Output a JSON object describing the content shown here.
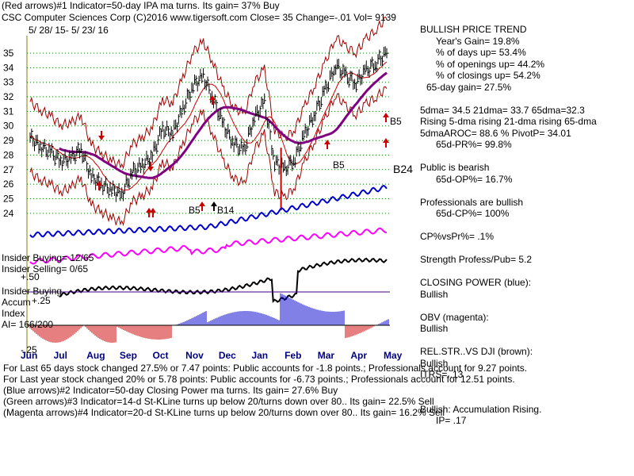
{
  "header": {
    "line1": "(Red arrows)#1 Indicator=50-day IPA ma turns. Its gain= 37% Buy",
    "line2": "CSC  Computer Sciences Corp  (C)2016 www.tigersoft.com   Close=  35  Change=-.01 Vol= 9139",
    "line3": "5/ 28/ 15- 5/ 23/ 16"
  },
  "right_panel": [
    {
      "text": "BULLISH PRICE TREND",
      "indent": 0
    },
    {
      "text": "Year's Gain= 19.8%",
      "indent": 20
    },
    {
      "text": "% of days up= 53.4%",
      "indent": 20
    },
    {
      "text": "% of openings up= 44.2%",
      "indent": 20
    },
    {
      "text": "% of closings up= 54.2%",
      "indent": 20
    },
    {
      "text": "65-day gain= 27.5%",
      "indent": 8
    },
    {
      "text": "",
      "indent": 0
    },
    {
      "text": "5dma= 34.5 21dma= 33.7 65dma=32.3",
      "indent": 0
    },
    {
      "text": "Rising 5-dma rising 21-dma rising 65-dma",
      "indent": 0
    },
    {
      "text": "5dmaAROC= 88.6 %  PivotP= 34.01",
      "indent": 0
    },
    {
      "text": "65d-PR%= 99.8%",
      "indent": 20
    },
    {
      "text": "",
      "indent": 0
    },
    {
      "text": "Public is bearish",
      "indent": 0
    },
    {
      "text": "65d-OP%= 16.7%",
      "indent": 20
    },
    {
      "text": "",
      "indent": 0
    },
    {
      "text": "Professionals are bullish",
      "indent": 0
    },
    {
      "text": "65d-CP%= 100%",
      "indent": 20
    },
    {
      "text": "",
      "indent": 0
    },
    {
      "text": "CP%vsPr%=  .1%",
      "indent": 0
    },
    {
      "text": "",
      "indent": 0
    },
    {
      "text": "Strength Profess/Pub= 5.2",
      "indent": 0
    },
    {
      "text": "",
      "indent": 0
    },
    {
      "text": "CLOSING POWER (blue):",
      "indent": 0
    },
    {
      "text": "Bullish",
      "indent": 0
    },
    {
      "text": "",
      "indent": 0
    },
    {
      "text": "OBV (magenta):",
      "indent": 0
    },
    {
      "text": "Bullish",
      "indent": 0
    },
    {
      "text": "",
      "indent": 0
    },
    {
      "text": "REL.STR..VS DJI (brown):",
      "indent": 0
    },
    {
      "text": "Bullish",
      "indent": 0
    },
    {
      "text": "ITRS= .13",
      "indent": 0
    },
    {
      "text": "",
      "indent": 0
    },
    {
      "text": "",
      "indent": 0
    },
    {
      "text": "Bullish: Accumulation Rising.",
      "indent": 0
    },
    {
      "text": "IP=  .17",
      "indent": 20
    }
  ],
  "left_labels": {
    "insider_buying": "Insider Buying= 12/65",
    "insider_selling": "Insider Selling= 0/65",
    "insider_buying2": "Insider Buying",
    "accum": "Accum",
    "index": "Index",
    "ai": "AI= 166/200",
    "plus50": "+.50",
    "plus25": "+.25",
    "minus25": "-.25"
  },
  "annotations": {
    "b24": "B24",
    "b5_right": "B5",
    "b5_mid": "B5",
    "b5_left": "B5",
    "b14": "B14"
  },
  "footer": {
    "f1": "For Last 65 days stock changed  27.5% or  7.47 points:  Public accounts for -1.8 points.;  Professionals account for  9.27 points.",
    "f2": "For Last year stock changed  20% or  5.78 points:  Public accounts for -6.73 points.;  Professionals account for  12.51 points.",
    "f3": "(Blue arrows)#2 Indicator=50-day Closing Power ma turns. Its gain= 27.6% Buy",
    "f4": "(Green arrows)#3 Indicator=14-d St-KLine turns up below 20/turns down over 80.. Its gain= 22.5% Sell",
    "f5": "(Magenta arrows)#4 Indicator=20-d St-KLine turns up below 20/turns down over 80.. Its gain= 16.2% Sell"
  },
  "chart_data": {
    "type": "line",
    "title": "CSC  Computer Sciences Corp",
    "x_labels": [
      "Jun",
      "Jul",
      "Aug",
      "Sep",
      "Oct",
      "Nov",
      "Dec",
      "Jan",
      "Feb",
      "Mar",
      "Apr",
      "May"
    ],
    "y_ticks": [
      24,
      25,
      26,
      27,
      28,
      29,
      30,
      31,
      32,
      33,
      34,
      35
    ],
    "ylim": [
      23.5,
      35.6
    ],
    "price_close": [
      29.2,
      28.6,
      28.2,
      27.6,
      27.8,
      28.4,
      26.5,
      26.0,
      25.6,
      25.3,
      26.8,
      27.3,
      28.0,
      29.8,
      29.5,
      31.2,
      32.8,
      33.4,
      31.8,
      30.0,
      28.8,
      28.3,
      30.6,
      31.6,
      27.5,
      27.0,
      27.8,
      29.5,
      31.0,
      32.5,
      34.2,
      33.4,
      33.0,
      33.8,
      34.4,
      35.0
    ],
    "series": [
      {
        "name": "Closing Power (blue)",
        "color": "#0000cc"
      },
      {
        "name": "OBV (magenta)",
        "color": "#ff00ff"
      },
      {
        "name": "Rel.Str. vs DJI",
        "color": "#000000"
      },
      {
        "name": "65-dma",
        "color": "#800080"
      }
    ],
    "colors": {
      "price": "#000000",
      "bands": "#a00000",
      "ma65": "#800080",
      "ma21": "#cc0000",
      "closing_power": "#0000cc",
      "obv": "#ff00ff",
      "relstr": "#000000",
      "accum_pos": "#0000cc",
      "accum_neg": "#cc0000",
      "grid": "#008000"
    }
  }
}
